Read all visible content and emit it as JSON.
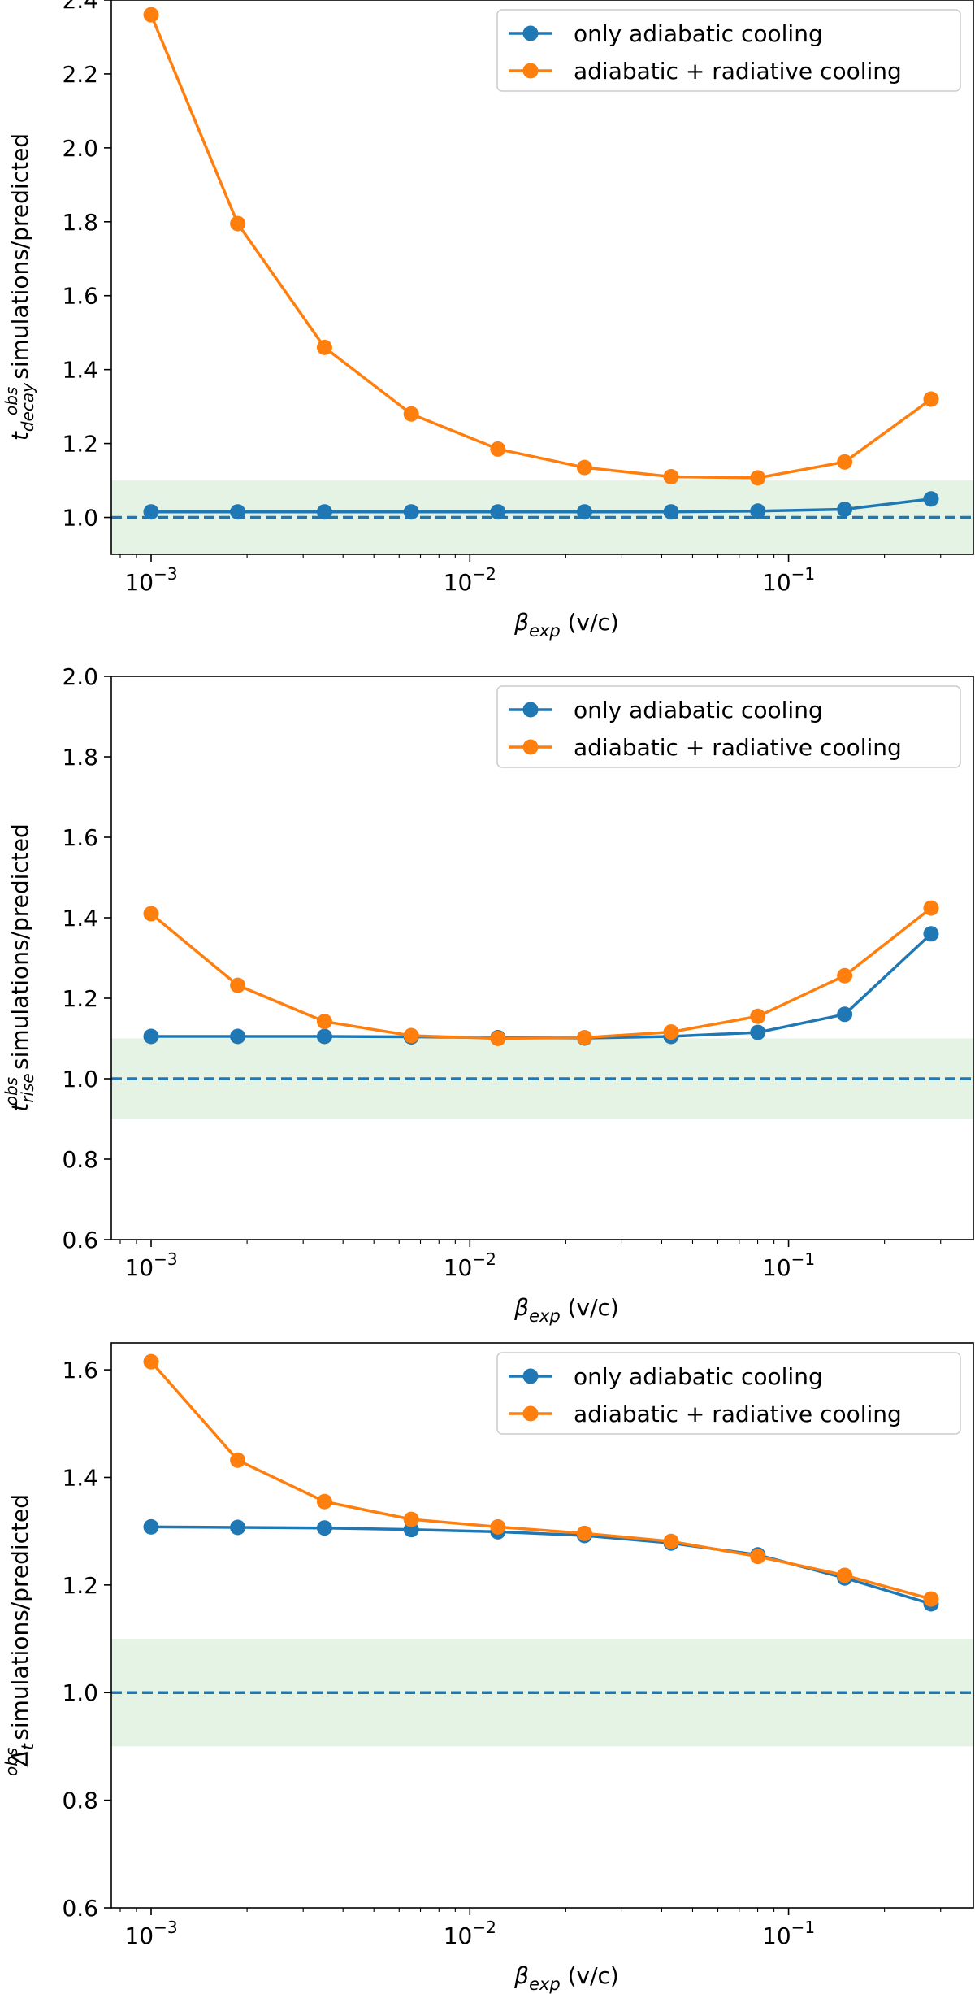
{
  "colors": {
    "series_adiabatic": "#1f77b4",
    "series_radiative": "#ff7f0e",
    "reference_line": "#1f77b4",
    "tolerance_band": "#2ca02c"
  },
  "shared": {
    "x": [
      0.001,
      0.00187,
      0.0035,
      0.00655,
      0.01225,
      0.0229,
      0.0428,
      0.0801,
      0.15,
      0.28
    ],
    "xlabel_symbol": "β",
    "xlabel_sub": "exp",
    "xlabel_units": " (v/c)",
    "x_ticks": [
      {
        "value": 0.001,
        "base": "10",
        "exp": "−3"
      },
      {
        "value": 0.01,
        "base": "10",
        "exp": "−2"
      },
      {
        "value": 0.1,
        "base": "10",
        "exp": "−1"
      }
    ],
    "ylabel_suffix": " simulations/predicted",
    "legend": [
      "only adiabatic cooling",
      "adiabatic + radiative cooling"
    ],
    "legend_position": "top-right",
    "reference_value": 1.0,
    "tolerance_band": [
      0.9,
      1.1
    ]
  },
  "chart_data": [
    {
      "type": "line",
      "ylabel_main": "t",
      "ylabel_sup": "obs",
      "ylabel_sub": "decay",
      "ylim": [
        0.9,
        2.4
      ],
      "xlim": [
        0.00075,
        0.38
      ],
      "yticks": [
        "1.0",
        "1.2",
        "1.4",
        "1.6",
        "1.8",
        "2.0",
        "2.2",
        "2.4"
      ],
      "series": [
        {
          "name": "only adiabatic cooling",
          "values": [
            1.015,
            1.015,
            1.015,
            1.015,
            1.015,
            1.015,
            1.015,
            1.017,
            1.022,
            1.05
          ]
        },
        {
          "name": "adiabatic + radiative cooling",
          "values": [
            2.36,
            1.795,
            1.46,
            1.28,
            1.185,
            1.135,
            1.11,
            1.107,
            1.15,
            1.32
          ]
        }
      ]
    },
    {
      "type": "line",
      "ylabel_main": "t",
      "ylabel_sup": "obs",
      "ylabel_sub": "rise",
      "ylim": [
        0.6,
        2.0
      ],
      "xlim": [
        0.00075,
        0.38
      ],
      "yticks": [
        "0.6",
        "0.8",
        "1.0",
        "1.2",
        "1.4",
        "1.6",
        "1.8",
        "2.0"
      ],
      "series": [
        {
          "name": "only adiabatic cooling",
          "values": [
            1.105,
            1.105,
            1.105,
            1.104,
            1.102,
            1.101,
            1.105,
            1.115,
            1.16,
            1.36
          ]
        },
        {
          "name": "adiabatic + radiative cooling",
          "values": [
            1.41,
            1.232,
            1.142,
            1.107,
            1.1,
            1.102,
            1.116,
            1.155,
            1.256,
            1.424
          ]
        }
      ]
    },
    {
      "type": "line",
      "ylabel_main": "Δ",
      "ylabel_sup": "obs",
      "ylabel_sub": "t",
      "ylim": [
        0.6,
        1.65
      ],
      "xlim": [
        0.00075,
        0.38
      ],
      "yticks": [
        "0.6",
        "0.8",
        "1.0",
        "1.2",
        "1.4",
        "1.6"
      ],
      "series": [
        {
          "name": "only adiabatic cooling",
          "values": [
            1.308,
            1.307,
            1.306,
            1.303,
            1.299,
            1.292,
            1.278,
            1.256,
            1.213,
            1.165
          ]
        },
        {
          "name": "adiabatic + radiative cooling",
          "values": [
            1.615,
            1.432,
            1.355,
            1.322,
            1.308,
            1.296,
            1.281,
            1.253,
            1.218,
            1.174
          ]
        }
      ]
    }
  ]
}
